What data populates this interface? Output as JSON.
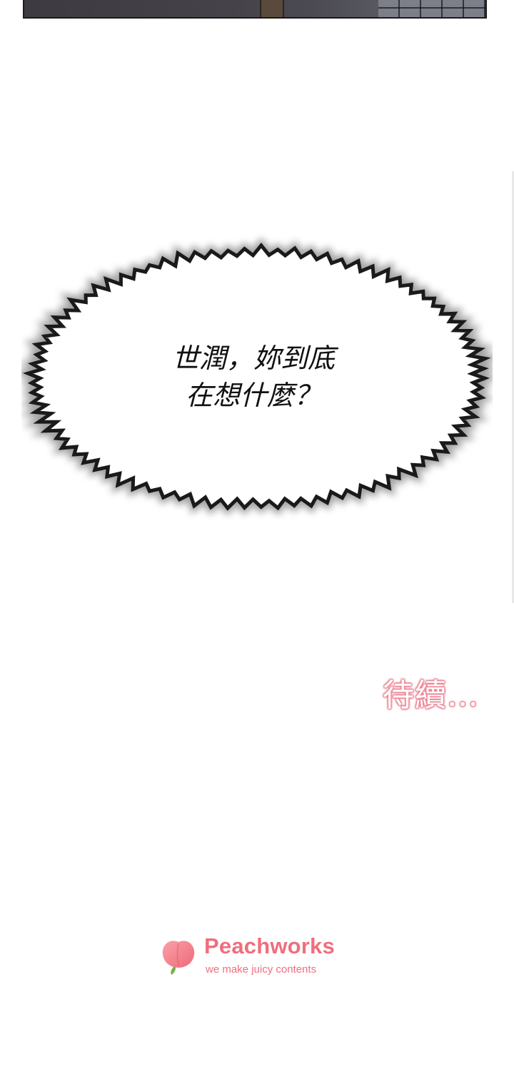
{
  "speech_bubble": {
    "line1": "世潤，妳到底",
    "line2": "在想什麼？"
  },
  "to_be_continued": "待續…",
  "logo": {
    "brand": "Peachworks",
    "tagline": "we make juicy contents",
    "color": "#ef6f7d"
  }
}
